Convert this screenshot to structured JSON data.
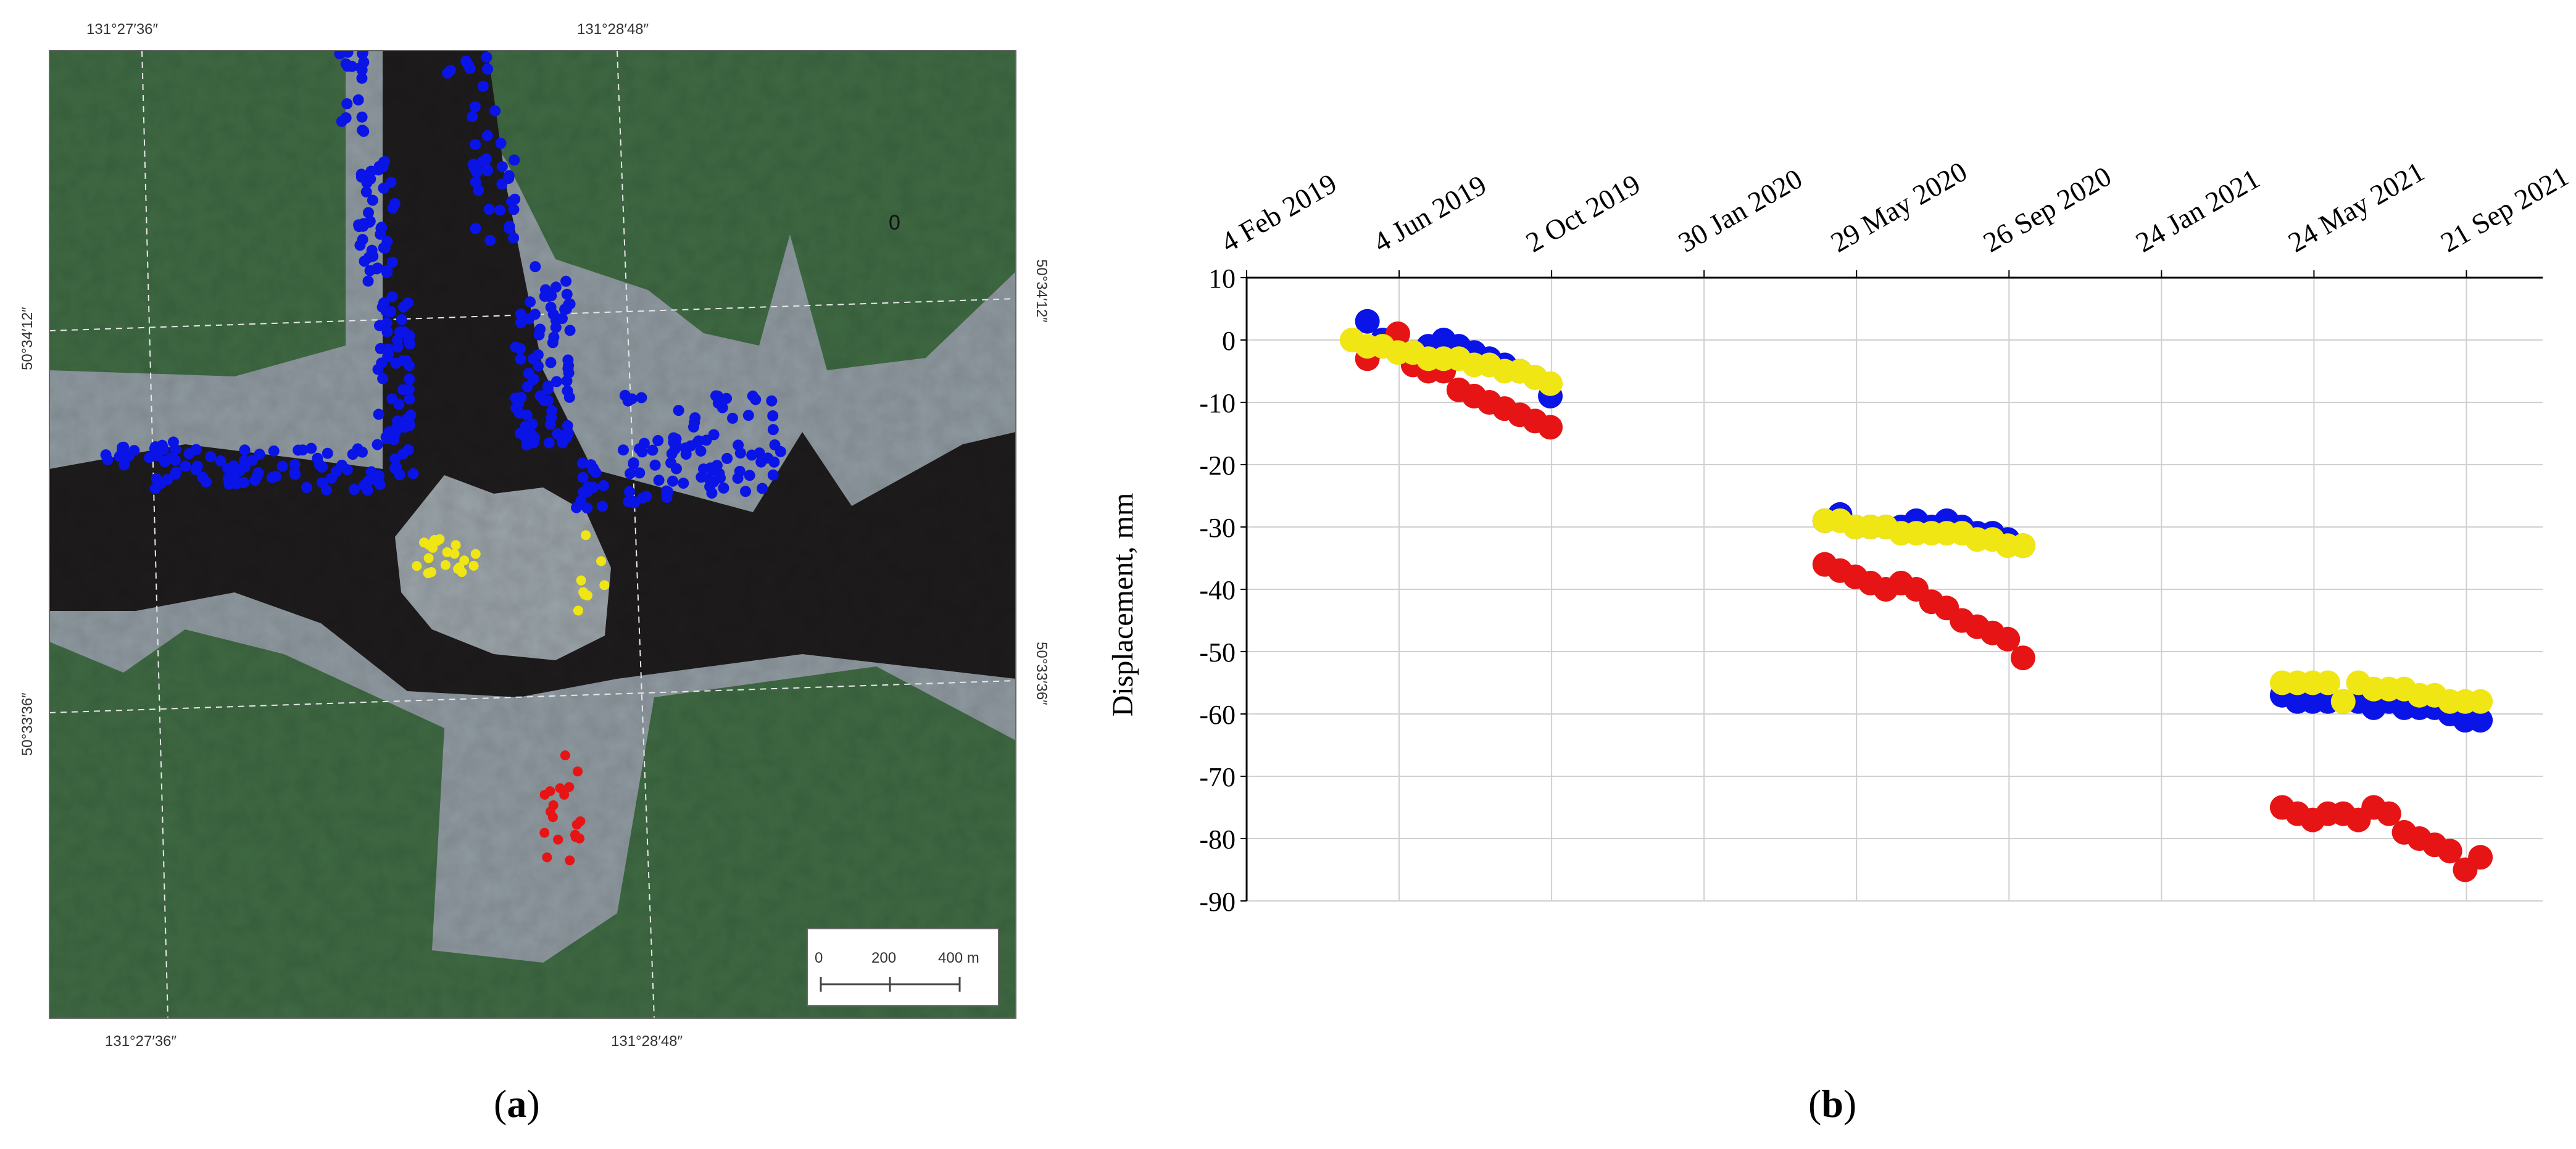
{
  "figure": {
    "caption_a": "a",
    "caption_b": "b"
  },
  "map": {
    "lon_labels_top": [
      "131°27′36″",
      "131°28′48″"
    ],
    "lon_labels_bottom": [
      "131°27′36″",
      "131°28′48″"
    ],
    "lat_labels_left": [
      "50°34′12″",
      "50°33′36″"
    ],
    "lat_labels_right": [
      "50°34′12″",
      "50°33′36″"
    ],
    "stray_label": "0",
    "scale_bar": {
      "ticks": [
        "0",
        "200",
        "400 m"
      ]
    },
    "colors": {
      "blue": "#0a14e6",
      "yellow": "#f0e614",
      "red": "#e61414",
      "forest": "#3f6a43",
      "river": "#1e1c1c",
      "bank": "#8f9aa0"
    }
  },
  "chart_data": {
    "type": "scatter",
    "title": "",
    "xlabel": "",
    "ylabel": "Displacement,  mm",
    "x_tick_labels": [
      "4 Feb 2019",
      "4 Jun 2019",
      "2 Oct 2019",
      "30 Jan 2020",
      "29 May 2020",
      "26 Sep 2020",
      "24 Jan 2021",
      "24 May 2021",
      "21 Sep 2021"
    ],
    "x_ticks": [
      "2019-02-04",
      "2019-06-04",
      "2019-10-02",
      "2020-01-30",
      "2020-05-29",
      "2020-09-26",
      "2021-01-24",
      "2021-05-24",
      "2021-09-21"
    ],
    "xlim": [
      "2019-02-04",
      "2021-11-20"
    ],
    "ylim": [
      -90,
      10
    ],
    "y_ticks": [
      10,
      0,
      -10,
      -20,
      -30,
      -40,
      -50,
      -60,
      -70,
      -80,
      -90
    ],
    "grid": true,
    "legend": "none",
    "series": [
      {
        "color": "#0a14e6",
        "x": [
          "2019-05-10",
          "2019-05-22",
          "2019-06-03",
          "2019-06-15",
          "2019-06-27",
          "2019-07-09",
          "2019-07-21",
          "2019-08-02",
          "2019-08-14",
          "2019-08-26",
          "2019-09-07",
          "2019-09-19",
          "2019-10-01",
          "2020-05-04",
          "2020-05-16",
          "2020-05-28",
          "2020-06-09",
          "2020-06-21",
          "2020-07-03",
          "2020-07-15",
          "2020-07-27",
          "2020-08-08",
          "2020-08-20",
          "2020-09-01",
          "2020-09-13",
          "2020-09-25",
          "2020-10-07",
          "2021-04-29",
          "2021-05-11",
          "2021-05-23",
          "2021-06-04",
          "2021-06-16",
          "2021-06-28",
          "2021-07-10",
          "2021-07-22",
          "2021-08-03",
          "2021-08-15",
          "2021-08-27",
          "2021-09-08",
          "2021-09-20",
          "2021-10-02"
        ],
        "y": [
          3,
          0,
          -1,
          -2,
          -1,
          0,
          -1,
          -2,
          -3,
          -4,
          -5,
          -6,
          -9,
          -29,
          -28,
          -30,
          -30,
          -30,
          -30,
          -29,
          -30,
          -29,
          -30,
          -31,
          -31,
          -32,
          -33,
          -57,
          -58,
          -58,
          -58,
          -58,
          -58,
          -59,
          -58,
          -59,
          -59,
          -59,
          -60,
          -61,
          -61
        ]
      },
      {
        "color": "#e61414",
        "x": [
          "2019-05-10",
          "2019-05-22",
          "2019-06-03",
          "2019-06-15",
          "2019-06-27",
          "2019-07-09",
          "2019-07-21",
          "2019-08-02",
          "2019-08-14",
          "2019-08-26",
          "2019-09-07",
          "2019-09-19",
          "2019-10-01",
          "2020-05-04",
          "2020-05-16",
          "2020-05-28",
          "2020-06-09",
          "2020-06-21",
          "2020-07-03",
          "2020-07-15",
          "2020-07-27",
          "2020-08-08",
          "2020-08-20",
          "2020-09-01",
          "2020-09-13",
          "2020-09-25",
          "2020-10-07",
          "2021-04-29",
          "2021-05-11",
          "2021-05-23",
          "2021-06-04",
          "2021-06-16",
          "2021-06-28",
          "2021-07-10",
          "2021-07-22",
          "2021-08-03",
          "2021-08-15",
          "2021-08-27",
          "2021-09-08",
          "2021-09-20",
          "2021-10-02"
        ],
        "y": [
          -3,
          -1,
          1,
          -4,
          -5,
          -5,
          -8,
          -9,
          -10,
          -11,
          -12,
          -13,
          -14,
          -36,
          -37,
          -38,
          -39,
          -40,
          -39,
          -40,
          -42,
          -43,
          -45,
          -46,
          -47,
          -48,
          -51,
          -75,
          -76,
          -77,
          -76,
          -76,
          -77,
          -75,
          -76,
          -79,
          -80,
          -81,
          -82,
          -85,
          -83
        ]
      },
      {
        "color": "#f0e614",
        "x": [
          "2019-04-28",
          "2019-05-10",
          "2019-05-22",
          "2019-06-03",
          "2019-06-15",
          "2019-06-27",
          "2019-07-09",
          "2019-07-21",
          "2019-08-02",
          "2019-08-14",
          "2019-08-26",
          "2019-09-07",
          "2019-09-19",
          "2019-10-01",
          "2020-05-04",
          "2020-05-16",
          "2020-05-28",
          "2020-06-09",
          "2020-06-21",
          "2020-07-03",
          "2020-07-15",
          "2020-07-27",
          "2020-08-08",
          "2020-08-20",
          "2020-09-01",
          "2020-09-13",
          "2020-09-25",
          "2020-10-07",
          "2021-04-29",
          "2021-05-11",
          "2021-05-23",
          "2021-06-04",
          "2021-06-16",
          "2021-06-28",
          "2021-07-10",
          "2021-07-22",
          "2021-08-03",
          "2021-08-15",
          "2021-08-27",
          "2021-09-08",
          "2021-09-20",
          "2021-10-02"
        ],
        "y": [
          0,
          -1,
          -1,
          -2,
          -2,
          -3,
          -3,
          -3,
          -4,
          -4,
          -5,
          -5,
          -6,
          -7,
          -29,
          -29,
          -30,
          -30,
          -30,
          -31,
          -31,
          -31,
          -31,
          -31,
          -32,
          -32,
          -33,
          -33,
          -55,
          -55,
          -55,
          -55,
          -58,
          -55,
          -56,
          -56,
          -56,
          -57,
          -57,
          -58,
          -58,
          -58
        ]
      }
    ]
  }
}
